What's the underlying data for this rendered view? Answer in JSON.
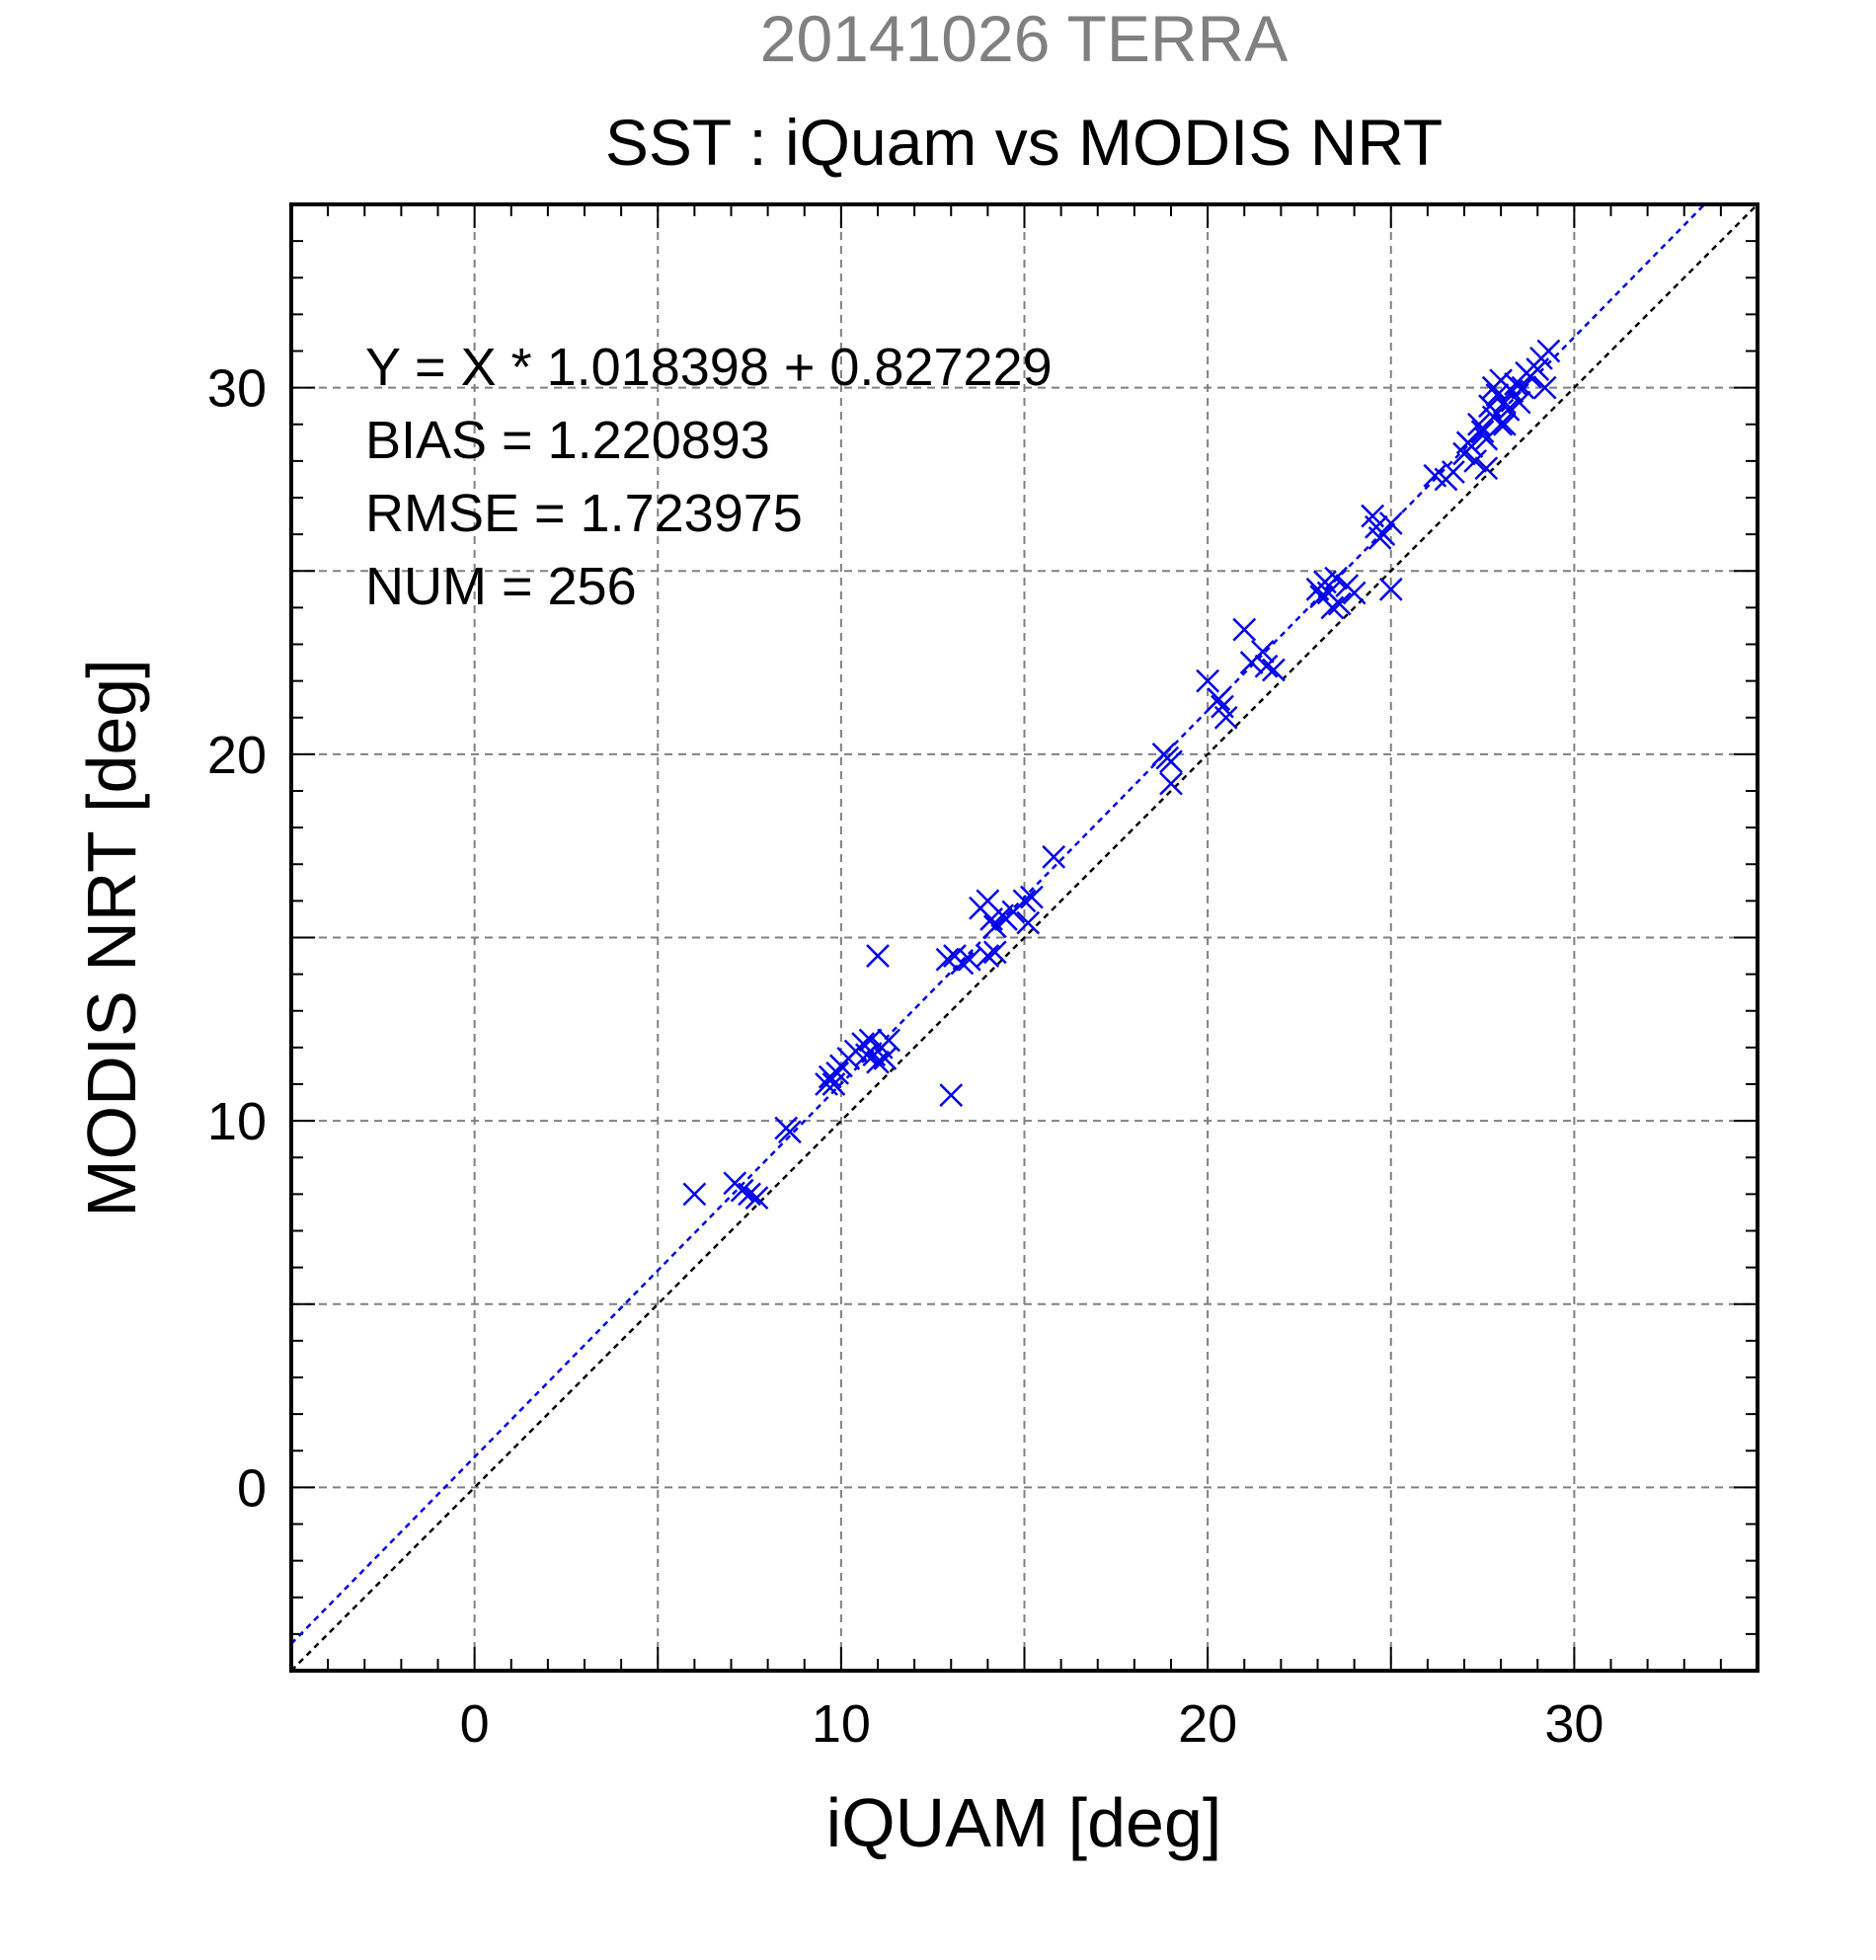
{
  "chart_data": {
    "type": "scatter",
    "title": "20141026 TERRA",
    "subtitle": "SST : iQuam vs MODIS NRT",
    "xlabel": "iQUAM [deg]",
    "ylabel": "MODIS NRT [deg]",
    "xlim": [
      -5,
      35
    ],
    "ylim": [
      -5,
      35
    ],
    "xticks": [
      0,
      10,
      20,
      30
    ],
    "yticks": [
      0,
      10,
      20,
      30
    ],
    "grid_step": 5,
    "grid": true,
    "annotations": [
      "Y = X * 1.018398 + 0.827229",
      "BIAS = 1.220893",
      "RMSE = 1.723975",
      "NUM = 256"
    ],
    "fit_line": {
      "slope": 1.018398,
      "intercept": 0.827229
    },
    "identity_line": true,
    "colors": {
      "points": "#0000ee",
      "fit_line": "#0000ee",
      "identity_line": "#000000",
      "title": "#808080",
      "grid": "#808080"
    },
    "series": [
      {
        "marker": "x",
        "x": [
          6.0,
          7.1,
          7.3,
          7.5,
          7.7,
          8.5,
          8.6,
          9.6,
          9.7,
          9.8,
          9.9,
          10.0,
          10.2,
          10.4,
          10.6,
          10.8,
          10.9,
          11.0,
          11.1,
          11.2,
          11.3,
          10.7,
          11.0,
          13.0,
          12.9,
          13.1,
          13.3,
          13.5,
          13.8,
          14.0,
          14.1,
          14.2,
          14.4,
          14.5,
          14.7,
          15.0,
          15.1,
          15.2,
          14.0,
          14.2,
          15.8,
          18.8,
          18.9,
          19.0,
          19.0,
          20.0,
          20.3,
          20.4,
          20.5,
          21.0,
          21.2,
          21.5,
          21.6,
          21.8,
          23.0,
          23.1,
          23.2,
          23.3,
          23.4,
          23.5,
          23.6,
          23.8,
          24.0,
          24.5,
          24.6,
          24.7,
          24.8,
          25.0,
          25.0,
          26.2,
          26.5,
          26.7,
          27.0,
          27.1,
          27.2,
          27.3,
          27.4,
          27.5,
          27.6,
          27.7,
          27.8,
          27.9,
          28.0,
          28.0,
          28.1,
          28.2,
          28.3,
          28.4,
          28.5,
          28.6,
          28.7,
          28.8,
          29.0,
          29.1,
          29.3,
          27.6,
          28.1,
          27.8,
          29.2
        ],
        "y": [
          8.0,
          8.3,
          8.1,
          8.0,
          7.9,
          9.8,
          9.7,
          11.0,
          11.2,
          11.0,
          11.3,
          11.5,
          11.7,
          11.9,
          12.1,
          12.2,
          11.8,
          11.6,
          12.0,
          11.7,
          12.2,
          11.8,
          14.5,
          10.7,
          14.4,
          14.5,
          14.3,
          14.4,
          15.8,
          16.0,
          15.5,
          15.3,
          15.6,
          15.5,
          15.7,
          16.0,
          15.4,
          16.1,
          14.5,
          14.6,
          17.2,
          20.0,
          19.9,
          19.8,
          19.2,
          22.0,
          21.5,
          21.3,
          21.0,
          23.4,
          22.5,
          22.8,
          22.4,
          22.3,
          24.5,
          24.3,
          24.7,
          24.4,
          24.0,
          24.8,
          24.1,
          24.6,
          24.4,
          26.5,
          26.2,
          25.9,
          26.0,
          26.3,
          24.5,
          27.6,
          27.5,
          27.7,
          28.2,
          28.5,
          28.4,
          28.0,
          29.0,
          28.8,
          28.6,
          29.5,
          29.2,
          29.8,
          29.0,
          30.2,
          29.6,
          29.4,
          29.9,
          30.1,
          29.6,
          30.0,
          30.4,
          30.3,
          30.5,
          30.8,
          31.0,
          27.8,
          29.0,
          30.0,
          30.0
        ]
      }
    ]
  }
}
